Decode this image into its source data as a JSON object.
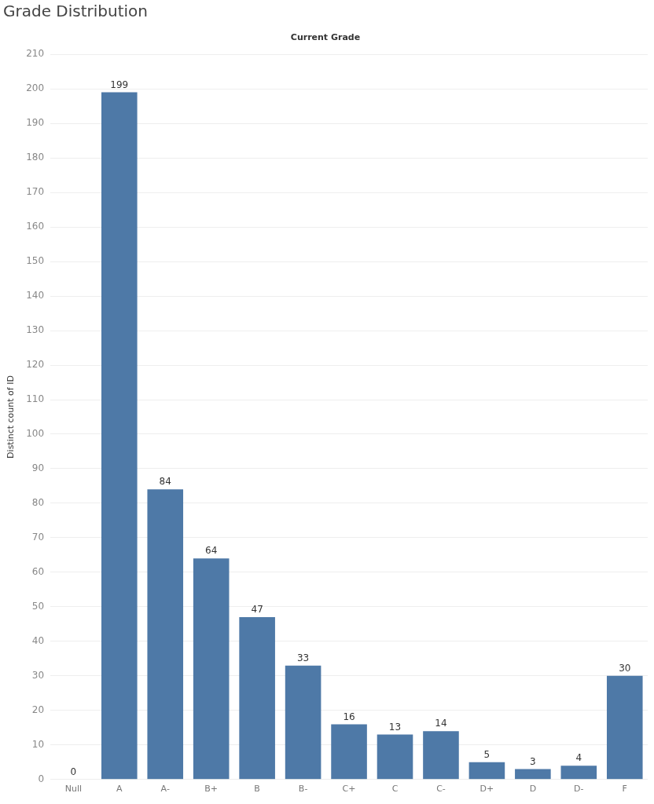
{
  "chart_data": {
    "type": "bar",
    "title": "Grade Distribution",
    "x_label": "Current Grade",
    "y_label": "Distinct count of ID",
    "categories": [
      "Null",
      "A",
      "A-",
      "B+",
      "B",
      "B-",
      "C+",
      "C",
      "C-",
      "D+",
      "D",
      "D-",
      "F"
    ],
    "values": [
      0,
      199,
      84,
      64,
      47,
      33,
      16,
      13,
      14,
      5,
      3,
      4,
      30
    ],
    "color": "#4e79a7",
    "ylim": [
      0,
      210
    ],
    "yticks": [
      0,
      10,
      20,
      30,
      40,
      50,
      60,
      70,
      80,
      90,
      100,
      110,
      120,
      130,
      140,
      150,
      160,
      170,
      180,
      190,
      200,
      210
    ],
    "grid": true,
    "data_labels": true
  }
}
